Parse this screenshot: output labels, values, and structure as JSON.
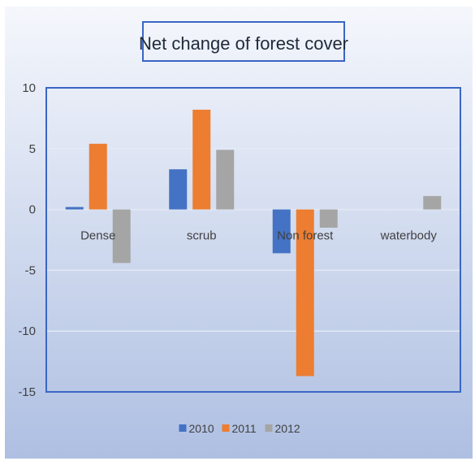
{
  "chart_data": {
    "type": "bar",
    "title": "Net change of forest cover",
    "xlabel": "",
    "ylabel": "",
    "ylim": [
      -15,
      10
    ],
    "yticks": [
      10,
      5,
      0,
      -5,
      -10,
      -15
    ],
    "categories": [
      "Dense",
      "scrub",
      "Non forest",
      "waterbody"
    ],
    "series": [
      {
        "name": "2010",
        "values": [
          0.2,
          3.3,
          -3.6,
          0
        ],
        "color": "#4472C4"
      },
      {
        "name": "2011",
        "values": [
          5.4,
          8.2,
          -13.7,
          0
        ],
        "color": "#ED7D31"
      },
      {
        "name": "2012",
        "values": [
          -4.4,
          4.9,
          -1.5,
          1.1
        ],
        "color": "#A5A5A5"
      }
    ],
    "grid": true,
    "legend_position": "bottom"
  }
}
